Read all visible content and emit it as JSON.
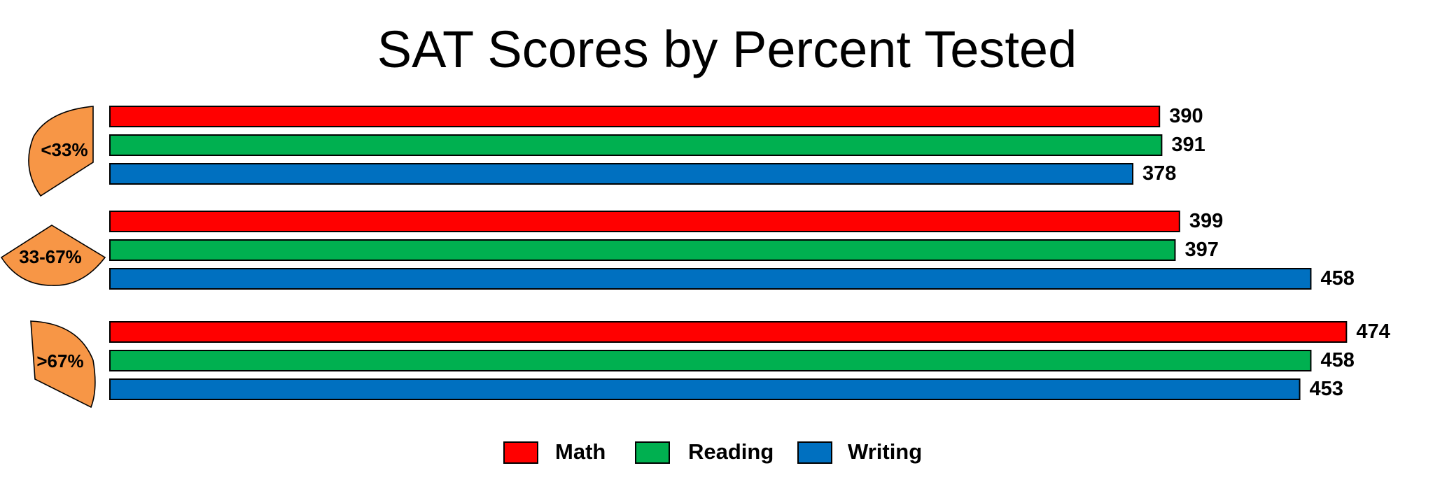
{
  "chart_data": {
    "type": "bar",
    "orientation": "horizontal",
    "title": "SAT Scores by Percent Tested",
    "categories": [
      "<33%",
      "33-67%",
      ">67%"
    ],
    "series": [
      {
        "name": "Math",
        "color": "#ff0000",
        "values": [
          390,
          399,
          474
        ]
      },
      {
        "name": "Reading",
        "color": "#00b050",
        "values": [
          391,
          397,
          458
        ]
      },
      {
        "name": "Writing",
        "color": "#0070c0",
        "values": [
          378,
          458,
          453
        ]
      }
    ],
    "category_marker_color": "#f79646",
    "legend_position": "bottom",
    "grid": false,
    "axes_visible": false
  }
}
